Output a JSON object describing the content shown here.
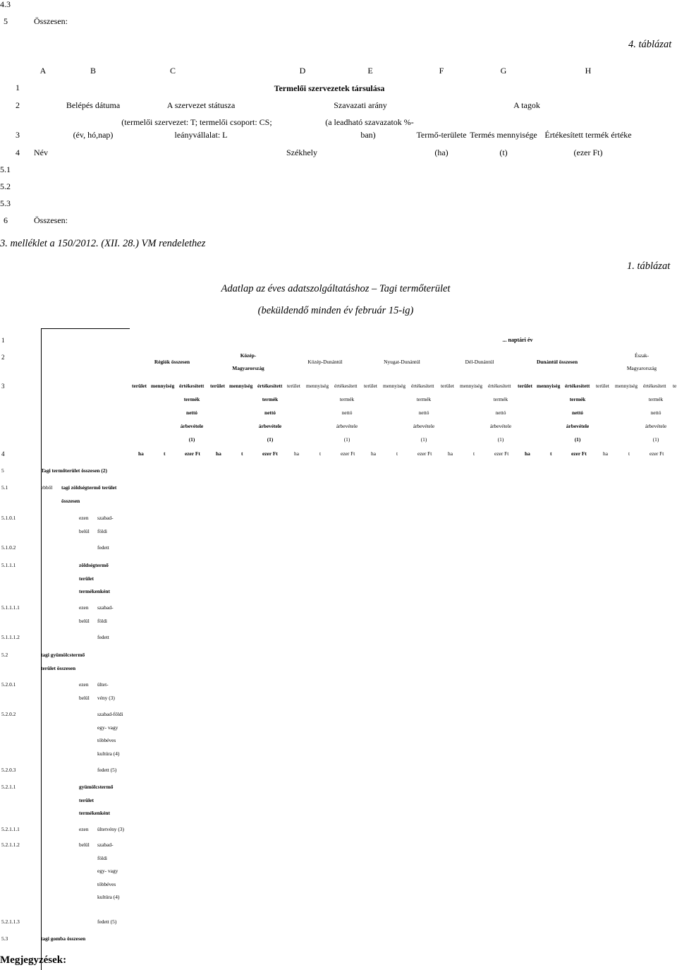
{
  "top": {
    "row_43": "4.3",
    "row_5": "5",
    "row_5_label": "Összesen:",
    "table_label": "4. táblázat"
  },
  "table4": {
    "columns": [
      "A",
      "B",
      "C",
      "D",
      "E",
      "F",
      "G",
      "H"
    ],
    "row_nums": [
      "1",
      "2",
      "3",
      "4",
      "5.1",
      "5.2",
      "5.3",
      "6"
    ],
    "title": "Termelői szervezetek társulása",
    "r2": {
      "b": "Belépés dátuma",
      "c": "A szervezet státusza",
      "e": "Szavazati arány",
      "h": "A tagok"
    },
    "r3": {
      "b": "(év, hó,nap)",
      "c1": "(termelői szervezet: T; termelői csoport: CS;",
      "c2": "leányvállalat: L",
      "e1": "(a leadható szavazatok %-",
      "e2": "ban)",
      "f": "Termő-területe",
      "g": "Termés mennyisége",
      "h": "Értékesített termék értéke"
    },
    "r4": {
      "a": "Név",
      "d": "Székhely",
      "f": "(ha)",
      "g": "(t)",
      "h": "(ezer Ft)"
    },
    "r6_label": "Összesen:"
  },
  "annex": {
    "heading": "3. melléklet a 150/2012. (XII. 28.) VM rendelethez",
    "table_label": "1. táblázat",
    "title": "Adatlap az éves adatszolgáltatáshoz – Tagi termőterület",
    "subtitle": "(beküldendő minden év február 15-ig)"
  },
  "table1": {
    "row1_num": "1",
    "year_label": "... naptári év",
    "row2_num": "2",
    "regions": [
      {
        "l1": "Régiók összesen",
        "l2": "",
        "bold": true
      },
      {
        "l1": "Közép-",
        "l2": "Magyarország",
        "bold": true
      },
      {
        "l1": "Közép-Dunántúl",
        "l2": "",
        "bold": false
      },
      {
        "l1": "Nyugat-Dunántúl",
        "l2": "",
        "bold": false
      },
      {
        "l1": "Dél-Dunántúl",
        "l2": "",
        "bold": false
      },
      {
        "l1": "Dunántúl összesen",
        "l2": "",
        "bold": true
      },
      {
        "l1": "Észak-",
        "l2": "Magyarország",
        "bold": false
      }
    ],
    "row3_num": "3",
    "group_head": [
      "terület",
      "mennyiség",
      "értékesített"
    ],
    "group_sub": [
      "termék",
      "nettó",
      "árbevétele",
      "(1)"
    ],
    "last_partial": "te",
    "row4_num": "4",
    "units": [
      "ha",
      "t",
      "ezer Ft"
    ],
    "rows": [
      {
        "num": "5",
        "text": [
          "Tagi termőterület összesen (2)"
        ],
        "bold": true,
        "col": "b"
      },
      {
        "num": "5.1",
        "text": [
          "ebből"
        ],
        "col": "b",
        "extra": {
          "text": [
            "tagi zöldségtermő terület",
            "összesen"
          ],
          "bold": true
        }
      },
      {
        "num": "5.1.0.1",
        "text": [
          "ezen",
          "belül"
        ],
        "col": "c",
        "extra": {
          "text": [
            "szabad-",
            "földi"
          ]
        }
      },
      {
        "num": "5.1.0.2",
        "text": [
          "fedett"
        ],
        "col": "d"
      },
      {
        "num": "5.1.1.1",
        "text": [
          "zöldségtermő",
          "terület",
          "termékenként"
        ],
        "bold": true,
        "col": "c"
      },
      {
        "num": "5.1.1.1.1",
        "text": [
          "ezen",
          "belül"
        ],
        "col": "c",
        "extra": {
          "text": [
            "szabad-",
            "földi"
          ]
        }
      },
      {
        "num": "5.1.1.1.2",
        "text": [
          "fedett"
        ],
        "col": "d"
      },
      {
        "num": "5.2",
        "text": [
          "tagi gyümölcstermő",
          "terület összesen"
        ],
        "bold": true,
        "col": "b"
      },
      {
        "num": "5.2.0.1",
        "text": [
          "ezen",
          "belül"
        ],
        "col": "c",
        "extra": {
          "text": [
            "ültet-",
            "vény (3)"
          ]
        }
      },
      {
        "num": "5.2.0.2",
        "text": [
          "szabad-földi",
          "egy- vagy",
          "többéves",
          "kultúra (4)"
        ],
        "col": "d"
      },
      {
        "num": "5.2.0.3",
        "text": [
          "fedett (5)"
        ],
        "col": "d"
      },
      {
        "num": "5.2.1.1",
        "text": [
          "gyümölcstermő",
          "terület",
          "termékenként"
        ],
        "bold": true,
        "col": "c"
      },
      {
        "num": "5.2.1.1.1",
        "text": [
          "ezen"
        ],
        "col": "c",
        "extra": {
          "text": [
            "ültetvény (3)"
          ]
        }
      },
      {
        "num": "5.2.1.1.2",
        "text": [
          "belül"
        ],
        "col": "c",
        "extra": {
          "text": [
            "szabad-",
            "földi",
            "egy- vagy",
            "többéves",
            "kultúra (4)"
          ]
        }
      },
      {
        "num": "5.2.1.1.3",
        "text": [
          "fedett (5)"
        ],
        "col": "d"
      },
      {
        "num": "5.3",
        "text": [
          "tagi gomba összesen"
        ],
        "bold": true,
        "col": "b"
      }
    ]
  },
  "footer": {
    "notes": "Megjegyzések:"
  }
}
